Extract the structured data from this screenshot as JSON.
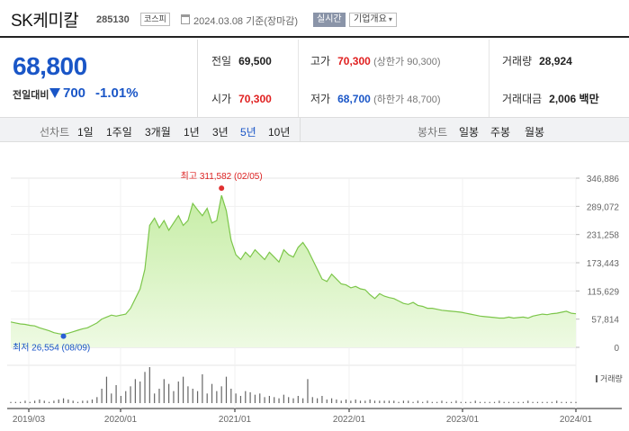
{
  "header": {
    "name": "SK케미칼",
    "code": "285130",
    "market": "코스피",
    "date": "2024.03.08 기준(장마감)",
    "realtime": "실시간",
    "company_info": "기업개요"
  },
  "price": {
    "current": "68,800",
    "prev_label": "전일대비",
    "change": "700",
    "change_pct": "-1.01%"
  },
  "stats": {
    "prev_close": {
      "label": "전일",
      "value": "69,500"
    },
    "high": {
      "label": "고가",
      "value": "70,300",
      "sub": "(상한가 90,300)"
    },
    "volume": {
      "label": "거래량",
      "value": "28,924"
    },
    "open": {
      "label": "시가",
      "value": "70,300"
    },
    "low": {
      "label": "저가",
      "value": "68,700",
      "sub": "(하한가 48,700)"
    },
    "amount": {
      "label": "거래대금",
      "value": "2,006",
      "unit": "백만"
    }
  },
  "tabs": {
    "line_label": "선차트",
    "periods": [
      "1일",
      "1주일",
      "3개월",
      "1년",
      "3년",
      "5년",
      "10년"
    ],
    "active": "5년",
    "candle_label": "봉차트",
    "candles": [
      "일봉",
      "주봉",
      "월봉"
    ]
  },
  "chart_data": {
    "type": "area",
    "x_ticks": [
      "2019/03",
      "2020/01",
      "2021/01",
      "2022/01",
      "2023/01",
      "2024/01"
    ],
    "y_ticks": [
      "346,886",
      "289,072",
      "231,258",
      "173,443",
      "115,629",
      "57,814",
      "0"
    ],
    "ylim": [
      0,
      346886
    ],
    "high_label": "최고 311,582 (02/05)",
    "low_label": "최저 26,554 (08/09)",
    "volume_label": "거래량",
    "colors": {
      "line": "#7cc64a",
      "fill_top": "#c6eda5",
      "fill_bottom": "#eefae3",
      "high": "#e03030",
      "low": "#2a5ed6",
      "volume": "#666666"
    },
    "series": [
      {
        "values": [
          52000,
          50000,
          48000,
          47000,
          45000,
          44000,
          40000,
          37000,
          34000,
          30000,
          28000,
          26554,
          29000,
          32000,
          35000,
          38000,
          40000,
          45000,
          50000,
          58000,
          62000,
          66000,
          64000,
          66000,
          68000,
          80000,
          100000,
          120000,
          160000,
          250000,
          265000,
          245000,
          260000,
          240000,
          255000,
          270000,
          250000,
          260000,
          295000,
          282000,
          270000,
          285000,
          255000,
          260000,
          311582,
          280000,
          220000,
          190000,
          180000,
          195000,
          185000,
          200000,
          190000,
          180000,
          195000,
          185000,
          175000,
          200000,
          190000,
          185000,
          205000,
          215000,
          200000,
          180000,
          160000,
          140000,
          135000,
          150000,
          140000,
          130000,
          128000,
          122000,
          125000,
          120000,
          118000,
          108000,
          100000,
          110000,
          105000,
          102000,
          100000,
          95000,
          90000,
          88000,
          92000,
          86000,
          84000,
          80000,
          80000,
          78000,
          76000,
          75000,
          74000,
          73000,
          72000,
          70000,
          68000,
          66000,
          64000,
          63000,
          62000,
          61000,
          60000,
          60000,
          62000,
          60000,
          61000,
          62000,
          60000,
          64000,
          66000,
          68000,
          67000,
          69000,
          70000,
          72000,
          74000,
          70000,
          68800
        ]
      },
      {
        "name": "거래량",
        "values": [
          1,
          1,
          1,
          2,
          1,
          2,
          3,
          2,
          1,
          2,
          3,
          4,
          3,
          2,
          1,
          2,
          2,
          3,
          5,
          12,
          22,
          8,
          15,
          6,
          10,
          14,
          20,
          18,
          26,
          30,
          8,
          12,
          20,
          16,
          10,
          18,
          22,
          14,
          12,
          10,
          24,
          8,
          16,
          10,
          14,
          22,
          12,
          8,
          6,
          10,
          9,
          7,
          8,
          5,
          6,
          5,
          4,
          7,
          5,
          4,
          6,
          4,
          20,
          5,
          4,
          6,
          3,
          4,
          3,
          2,
          3,
          2,
          3,
          2,
          2,
          3,
          2,
          2,
          2,
          2,
          2,
          1,
          2,
          2,
          1,
          2,
          1,
          2,
          1,
          1,
          2,
          1,
          1,
          2,
          1,
          1,
          1,
          2,
          1,
          1,
          1,
          1,
          2,
          1,
          1,
          1,
          1,
          1,
          2,
          1,
          1,
          1,
          1,
          1,
          2,
          1,
          1,
          1,
          1
        ]
      }
    ]
  }
}
